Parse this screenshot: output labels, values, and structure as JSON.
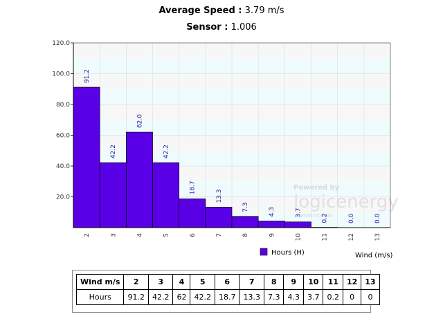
{
  "header": {
    "avg_label": "Average Speed :",
    "avg_value": "3.79 m/s",
    "sensor_label": "Sensor :",
    "sensor_value": "1.006"
  },
  "watermark": {
    "line1": "Powered by",
    "line2": "logicenergy",
    "line3": "E MONITORING"
  },
  "chart_data": {
    "type": "bar",
    "categories": [
      "2",
      "3",
      "4",
      "5",
      "6",
      "7",
      "8",
      "9",
      "10",
      "11",
      "12",
      "13"
    ],
    "series": [
      {
        "name": "Hours (H)",
        "values": [
          91.2,
          42.2,
          62.0,
          42.2,
          18.7,
          13.3,
          7.3,
          4.3,
          3.7,
          0.2,
          0.0,
          0.0
        ]
      }
    ],
    "data_labels": [
      "91.2",
      "42.2",
      "62.0",
      "42.2",
      "18.7",
      "13.3",
      "7.3",
      "4.3",
      "3.7",
      "0.2",
      "0.0",
      "0.0"
    ],
    "xlabel": "Wind (m/s)",
    "ylabel": "",
    "ylim": [
      0,
      120
    ],
    "yticks": [
      "20.0",
      "40.0",
      "60.0",
      "80.0",
      "100.0",
      "120.0"
    ],
    "grid": true,
    "legend": "bottom",
    "colors": {
      "bar": "#5a00e6",
      "bar_border": "#000000",
      "band_a": "#f0fbfd",
      "band_b": "#f7f7f7",
      "label": "#1a1aa6"
    }
  },
  "table": {
    "row_headers": [
      "Wind m/s",
      "Hours"
    ],
    "wind": [
      "2",
      "3",
      "4",
      "5",
      "6",
      "7",
      "8",
      "9",
      "10",
      "11",
      "12",
      "13"
    ],
    "hours": [
      "91.2",
      "42.2",
      "62",
      "42.2",
      "18.7",
      "13.3",
      "7.3",
      "4.3",
      "3.7",
      "0.2",
      "0",
      "0"
    ]
  }
}
